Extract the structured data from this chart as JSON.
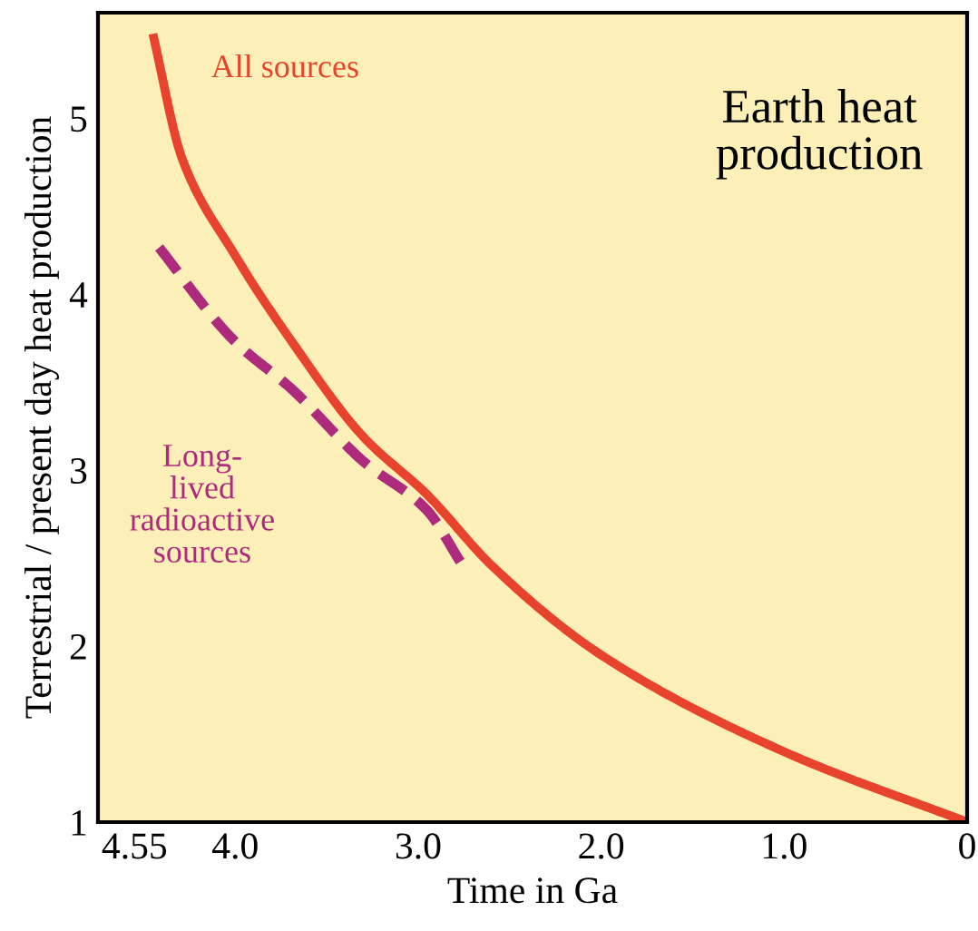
{
  "chart_data": {
    "type": "line",
    "title": "Earth heat production",
    "xlabel": "Time in Ga",
    "ylabel": "Terrestrial / present day heat production",
    "xlim": [
      4.75,
      0
    ],
    "xticks": [
      4.55,
      {
        "value": 4.0,
        "label": "4.0"
      },
      {
        "value": 3.0,
        "label": "3.0"
      },
      {
        "value": 2.0,
        "label": "2.0"
      },
      {
        "value": 1.0,
        "label": "1.0"
      },
      0
    ],
    "ylim": [
      1.0,
      5.6
    ],
    "yticks": [
      1,
      2,
      3,
      4,
      5
    ],
    "grid": false,
    "legend": false,
    "series": [
      {
        "name": "All sources",
        "color": "#e8432c",
        "line_style": "solid",
        "x": [
          4.45,
          4.29,
          4.0,
          3.69,
          3.3,
          2.95,
          2.6,
          2.0,
          1.0,
          0
        ],
        "values": [
          5.48,
          4.77,
          4.22,
          3.73,
          3.19,
          2.86,
          2.46,
          1.95,
          1.4,
          1.0
        ]
      },
      {
        "name": "Long-\nlived\nradioactive\nsources",
        "color": "#ad2a7c",
        "line_style": "dashed",
        "x": [
          4.45,
          4.0,
          3.69,
          3.3,
          2.95,
          2.77
        ],
        "values": [
          4.31,
          3.73,
          3.46,
          3.05,
          2.77,
          2.48
        ]
      }
    ]
  }
}
